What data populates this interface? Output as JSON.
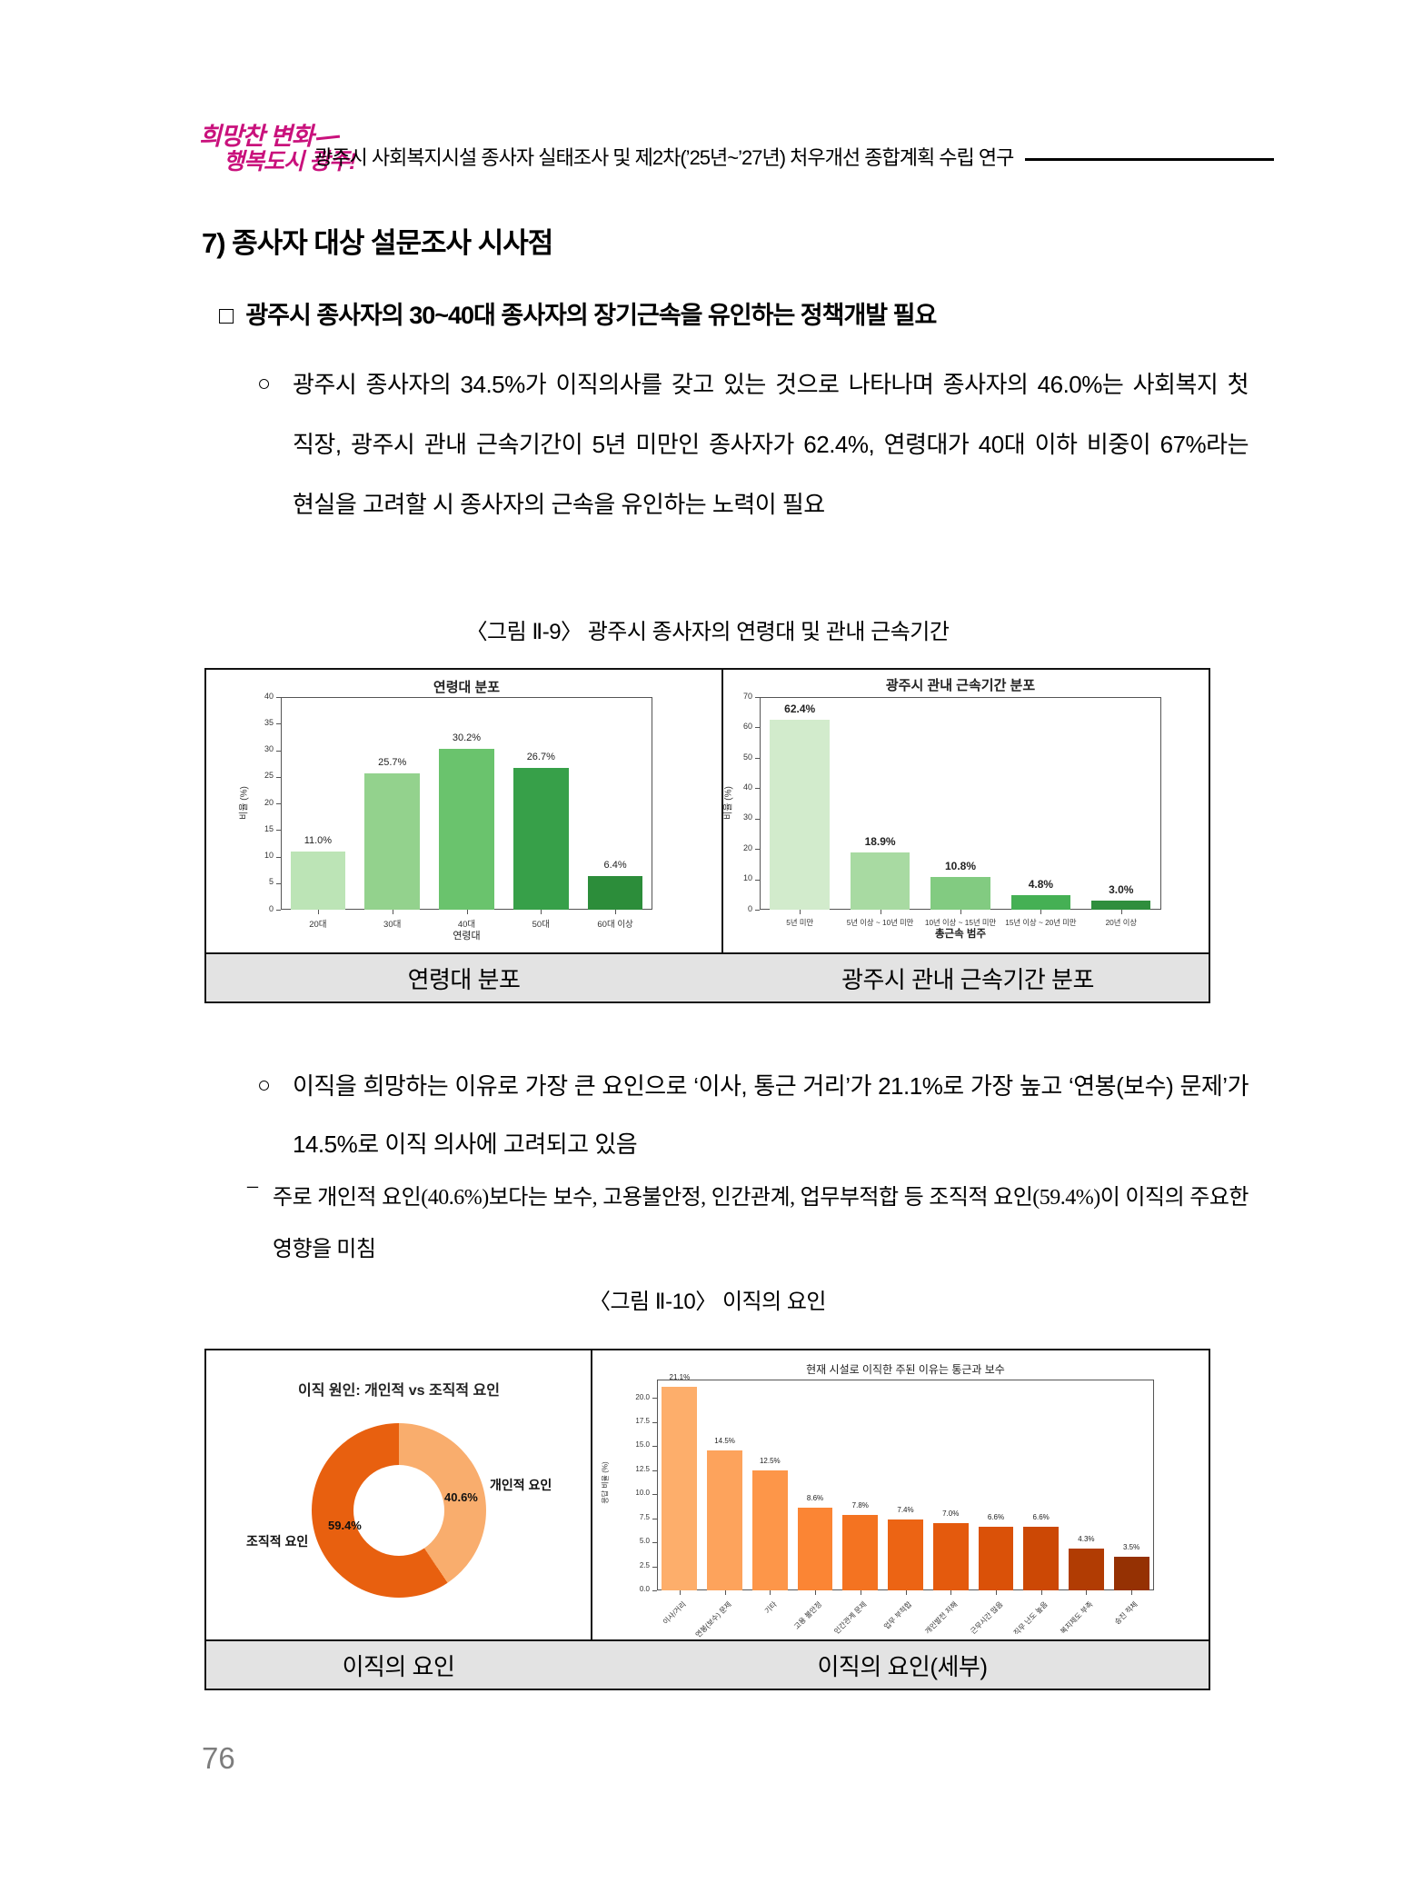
{
  "header": {
    "logo_line1": "희망찬 변화",
    "logo_line2": "행복도시 광주!",
    "title": "광주시 사회복지시설 종사자 실태조사 및 제2차(’25년~’27년) 처우개선 종합계획 수립 연구"
  },
  "section_heading": "7) 종사자 대상 설문조사 시사점",
  "sub_heading_marker": "□",
  "sub_heading": "광주시 종사자의 30~40대 종사자의 장기근속을 유인하는 정책개발 필요",
  "bullet1_marker": "○",
  "bullet1": "광주시 종사자의 34.5%가 이직의사를 갖고 있는 것으로 나타나며 종사자의 46.0%는 사회복지 첫 직장, 광주시 관내 근속기간이 5년 미만인 종사자가 62.4%, 연령대가 40대 이하 비중이 67%라는 현실을 고려할 시 종사자의 근속을 유인하는 노력이 필요",
  "figure9": {
    "caption": "〈그림 Ⅱ-9〉 광주시 종사자의 연령대 및 관내 근속기간",
    "left_caption": "연령대 분포",
    "right_caption": "광주시 관내 근속기간 분포"
  },
  "bullet2_marker": "○",
  "bullet2": "이직을 희망하는 이유로 가장 큰 요인으로 ‘이사, 통근 거리’가 21.1%로 가장 높고 ‘연봉(보수) 문제’가 14.5%로 이직 의사에 고려되고 있음",
  "dash_marker": "–",
  "dash_note": "주로 개인적 요인(40.6%)보다는 보수, 고용불안정, 인간관계, 업무부적합 등 조직적 요인(59.4%)이 이직의 주요한 영향을 미침",
  "figure10": {
    "caption": "〈그림 Ⅱ-10〉 이직의 요인",
    "left_caption": "이직의 요인",
    "right_caption": "이직의 요인(세부)"
  },
  "page_number": "76",
  "chart_data": [
    {
      "type": "bar",
      "title": "연령대 분포",
      "categories": [
        "20대",
        "30대",
        "40대",
        "50대",
        "60대 이상"
      ],
      "values": [
        11.0,
        25.7,
        30.2,
        26.7,
        6.4
      ],
      "value_label_suffix": "%",
      "xlabel": "연령대",
      "ylabel": "비율 (%)",
      "ylim": [
        0,
        40
      ],
      "yticks": [
        0,
        5,
        10,
        15,
        20,
        25,
        30,
        35,
        40
      ],
      "colors": [
        "#bce4b6",
        "#93d28d",
        "#6ac36d",
        "#37a049",
        "#2c8d3a"
      ],
      "legend": "none",
      "grid": false
    },
    {
      "type": "bar",
      "title": "광주시 관내 근속기간 분포",
      "categories": [
        "5년 미만",
        "5년 이상 ~ 10년 미만",
        "10년 이상 ~ 15년 미만",
        "15년 이상 ~ 20년 미만",
        "20년 이상"
      ],
      "values": [
        62.4,
        18.9,
        10.8,
        4.8,
        3.0
      ],
      "value_label_suffix": "%",
      "xlabel": "총근속 범주",
      "ylabel": "비율 (%)",
      "ylim": [
        0,
        70
      ],
      "yticks": [
        0,
        10,
        20,
        30,
        40,
        50,
        60,
        70
      ],
      "colors": [
        "#d2ebcc",
        "#a8daa2",
        "#82cb81",
        "#45b054",
        "#2f8e3d"
      ],
      "legend": "none",
      "grid": false
    },
    {
      "type": "pie",
      "subtype": "donut",
      "title": "이직 원인: 개인적 vs 조직적 요인",
      "slices": [
        {
          "label": "개인적 요인",
          "value": 40.6,
          "color": "#f9ad6d"
        },
        {
          "label": "조직적 요인",
          "value": 59.4,
          "color": "#e8600f"
        }
      ],
      "value_label_suffix": "%",
      "start_angle_deg": 0,
      "direction": "clockwise"
    },
    {
      "type": "bar",
      "title": "현재 시설로 이직한 주된 이유는 통근과 보수",
      "categories": [
        "이사/거리",
        "연봉(보수) 문제",
        "기타",
        "고용 불안정",
        "인간관계 문제",
        "업무 부적합",
        "개인발전 저해",
        "근무시간 많음",
        "직무 난도 높음",
        "복지제도 부족",
        "승진 적체"
      ],
      "values": [
        21.1,
        14.5,
        12.5,
        8.6,
        7.8,
        7.4,
        7.0,
        6.6,
        6.6,
        4.3,
        3.5
      ],
      "value_label_suffix": "%",
      "xlabel": "",
      "ylabel": "응답 비율 (%)",
      "ylim": [
        0,
        21.9
      ],
      "yticks": [
        0.0,
        2.5,
        5.0,
        7.5,
        10.0,
        12.5,
        15.0,
        17.5,
        20.0
      ],
      "colors": [
        "#fdae6b",
        "#fda35c",
        "#fd9649",
        "#fb8534",
        "#f47321",
        "#ec6414",
        "#e45a0d",
        "#da5108",
        "#cc4805",
        "#b13c03",
        "#953103"
      ],
      "legend": "none",
      "grid": false
    }
  ]
}
